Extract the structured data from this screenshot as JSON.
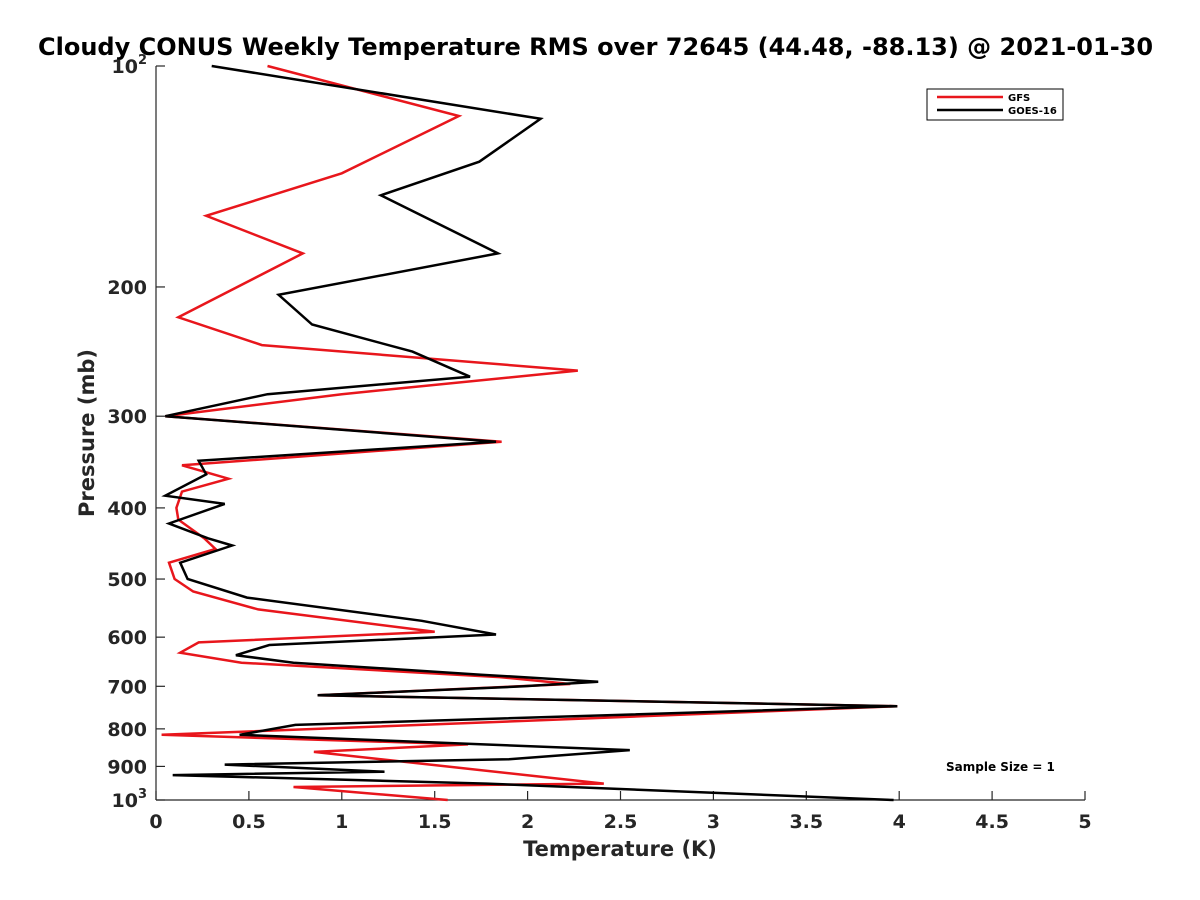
{
  "chart_data": {
    "type": "line",
    "title": "Cloudy CONUS Weekly Temperature RMS over 72645 (44.48, -88.13) @ 2021-01-30",
    "xlabel": "Temperature (K)",
    "ylabel": "Pressure (mb)",
    "xlim": [
      0,
      5
    ],
    "ylim": [
      100,
      1000
    ],
    "y_scale": "log",
    "y_reversed": true,
    "grid": false,
    "legend_position": "top-right",
    "x_ticks": [
      "0",
      "0.5",
      "1",
      "1.5",
      "2",
      "2.5",
      "3",
      "3.5",
      "4",
      "4.5",
      "5"
    ],
    "y_ticks": [
      {
        "value": 100,
        "base": "10",
        "exp": "2"
      },
      {
        "value": 200,
        "base": "200",
        "exp": ""
      },
      {
        "value": 300,
        "base": "300",
        "exp": ""
      },
      {
        "value": 400,
        "base": "400",
        "exp": ""
      },
      {
        "value": 500,
        "base": "500",
        "exp": ""
      },
      {
        "value": 600,
        "base": "600",
        "exp": ""
      },
      {
        "value": 700,
        "base": "700",
        "exp": ""
      },
      {
        "value": 800,
        "base": "800",
        "exp": ""
      },
      {
        "value": 900,
        "base": "900",
        "exp": ""
      },
      {
        "value": 1000,
        "base": "10",
        "exp": "3"
      }
    ],
    "annotation": "Sample Size = 1",
    "series": [
      {
        "name": "GFS",
        "color": "#e8161c",
        "points": [
          [
            0.6,
            100
          ],
          [
            1.63,
            117
          ],
          [
            1.0,
            140
          ],
          [
            0.27,
            160
          ],
          [
            0.79,
            180
          ],
          [
            0.12,
            220
          ],
          [
            0.57,
            240
          ],
          [
            2.27,
            260
          ],
          [
            1.0,
            280
          ],
          [
            0.05,
            300
          ],
          [
            1.86,
            325
          ],
          [
            0.14,
            350
          ],
          [
            0.39,
            365
          ],
          [
            0.14,
            380
          ],
          [
            0.11,
            400
          ],
          [
            0.12,
            415
          ],
          [
            0.26,
            440
          ],
          [
            0.32,
            455
          ],
          [
            0.07,
            475
          ],
          [
            0.1,
            500
          ],
          [
            0.2,
            520
          ],
          [
            0.55,
            550
          ],
          [
            1.5,
            590
          ],
          [
            0.23,
            610
          ],
          [
            0.13,
            630
          ],
          [
            0.46,
            650
          ],
          [
            1.85,
            680
          ],
          [
            2.23,
            695
          ],
          [
            0.87,
            720
          ],
          [
            3.99,
            745
          ],
          [
            2.0,
            780
          ],
          [
            0.03,
            815
          ],
          [
            1.68,
            840
          ],
          [
            0.85,
            860
          ],
          [
            2.41,
            950
          ],
          [
            0.74,
            960
          ],
          [
            1.57,
            1000
          ]
        ]
      },
      {
        "name": "GOES-16",
        "color": "#000000",
        "points": [
          [
            0.3,
            100
          ],
          [
            2.07,
            118
          ],
          [
            1.74,
            135
          ],
          [
            1.21,
            150
          ],
          [
            1.84,
            180
          ],
          [
            0.66,
            205
          ],
          [
            0.84,
            225
          ],
          [
            1.38,
            245
          ],
          [
            1.69,
            265
          ],
          [
            0.6,
            280
          ],
          [
            0.05,
            300
          ],
          [
            1.83,
            325
          ],
          [
            0.23,
            345
          ],
          [
            0.27,
            360
          ],
          [
            0.05,
            385
          ],
          [
            0.37,
            395
          ],
          [
            0.07,
            420
          ],
          [
            0.28,
            440
          ],
          [
            0.41,
            450
          ],
          [
            0.13,
            475
          ],
          [
            0.17,
            500
          ],
          [
            0.49,
            530
          ],
          [
            1.43,
            570
          ],
          [
            1.83,
            595
          ],
          [
            0.61,
            615
          ],
          [
            0.43,
            635
          ],
          [
            0.74,
            650
          ],
          [
            1.75,
            675
          ],
          [
            2.38,
            690
          ],
          [
            1.98,
            700
          ],
          [
            0.87,
            720
          ],
          [
            3.99,
            745
          ],
          [
            0.75,
            790
          ],
          [
            0.45,
            815
          ],
          [
            2.55,
            855
          ],
          [
            1.9,
            880
          ],
          [
            0.37,
            895
          ],
          [
            1.23,
            915
          ],
          [
            0.09,
            925
          ],
          [
            1.78,
            950
          ],
          [
            3.97,
            1000
          ]
        ]
      }
    ]
  }
}
